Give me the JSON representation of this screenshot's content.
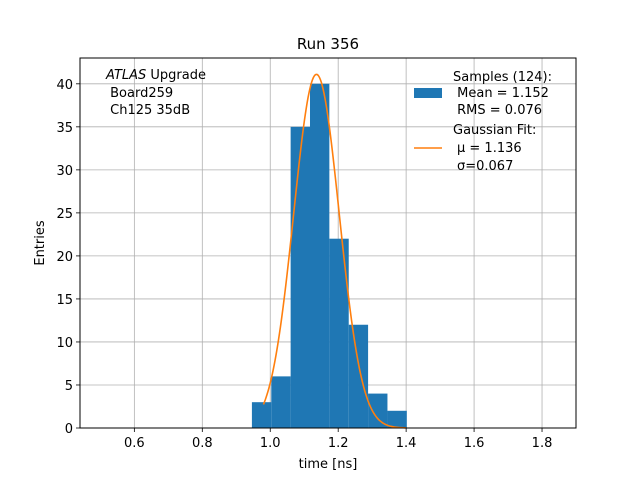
{
  "chart_data": {
    "type": "bar",
    "title": "Run 356",
    "xlabel": "time [ns]",
    "ylabel": "Entries",
    "xlim": [
      0.44,
      1.9
    ],
    "ylim": [
      0,
      43
    ],
    "xticks": [
      0.6,
      0.8,
      1.0,
      1.2,
      1.4,
      1.6,
      1.8
    ],
    "xtick_labels": [
      "0.6",
      "0.8",
      "1.0",
      "1.2",
      "1.4",
      "1.6",
      "1.8"
    ],
    "yticks": [
      0,
      5,
      10,
      15,
      20,
      25,
      30,
      35,
      40
    ],
    "ytick_labels": [
      "0",
      "5",
      "10",
      "15",
      "20",
      "25",
      "30",
      "35",
      "40"
    ],
    "grid": true,
    "bins": [
      {
        "x0": 0.946,
        "x1": 1.003,
        "count": 3
      },
      {
        "x0": 1.003,
        "x1": 1.06,
        "count": 6
      },
      {
        "x0": 1.06,
        "x1": 1.117,
        "count": 35
      },
      {
        "x0": 1.117,
        "x1": 1.174,
        "count": 40
      },
      {
        "x0": 1.174,
        "x1": 1.231,
        "count": 22
      },
      {
        "x0": 1.231,
        "x1": 1.288,
        "count": 12
      },
      {
        "x0": 1.288,
        "x1": 1.345,
        "count": 4
      },
      {
        "x0": 1.345,
        "x1": 1.402,
        "count": 2
      }
    ],
    "fit": {
      "type": "gaussian",
      "mu": 1.136,
      "sigma": 0.067,
      "amplitude": 41.1,
      "x_range": [
        0.98,
        1.4
      ]
    },
    "colors": {
      "bars": "#1f77b4",
      "fit": "#ff7f0e",
      "grid": "#b0b0b0"
    },
    "legend": {
      "placement": "top-right",
      "entries": [
        {
          "kind": "bar",
          "lines": [
            "Samples (124):",
            " Mean = 1.152",
            " RMS = 0.076"
          ]
        },
        {
          "kind": "line",
          "lines": [
            "Gaussian Fit:",
            "μ = 1.136",
            "σ=0.067"
          ]
        }
      ]
    },
    "annotation": {
      "placement": "top-left",
      "italic_word": "ATLAS",
      "line1_rest": " Upgrade",
      "line2": " Board259",
      "line3": " Ch125 35dB"
    }
  }
}
